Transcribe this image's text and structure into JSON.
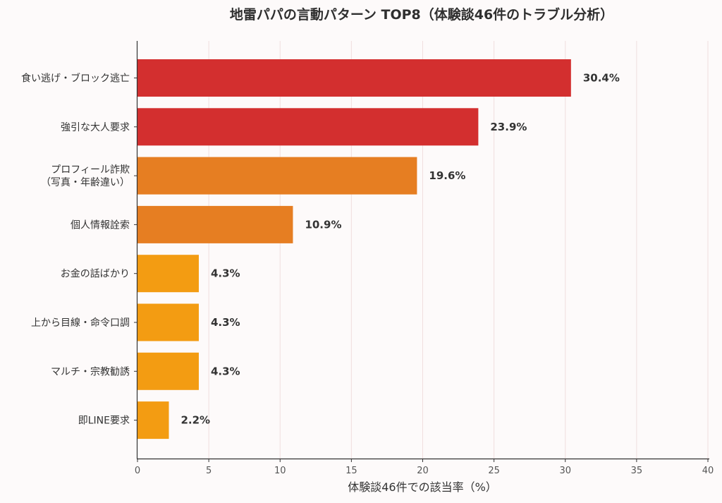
{
  "chart_data": {
    "type": "bar",
    "orientation": "horizontal",
    "title": "地雷パパの言動パターン TOP8（体験談46件のトラブル分析）",
    "xlabel": "体験談46件での該当率（%）",
    "ylabel": "",
    "xlim": [
      0,
      40
    ],
    "xticks": [
      "0",
      "5",
      "10",
      "15",
      "20",
      "25",
      "30",
      "35",
      "40"
    ],
    "grid": "vertical",
    "categories": [
      [
        "食い逃げ・ブロック逃亡"
      ],
      [
        "強引な大人要求"
      ],
      [
        "プロフィール詐欺",
        "（写真・年齢違い）"
      ],
      [
        "個人情報詮索"
      ],
      [
        "お金の話ばかり"
      ],
      [
        "上から目線・命令口調"
      ],
      [
        "マルチ・宗教勧誘"
      ],
      [
        "即LINE要求"
      ]
    ],
    "values": [
      30.4,
      23.9,
      19.6,
      10.9,
      4.3,
      4.3,
      4.3,
      2.2
    ],
    "value_labels": [
      "30.4%",
      "23.9%",
      "19.6%",
      "10.9%",
      "4.3%",
      "4.3%",
      "4.3%",
      "2.2%"
    ],
    "colors": [
      "#d32f2f",
      "#d32f2f",
      "#e67e22",
      "#e67e22",
      "#f39c12",
      "#f39c12",
      "#f39c12",
      "#f39c12"
    ]
  }
}
